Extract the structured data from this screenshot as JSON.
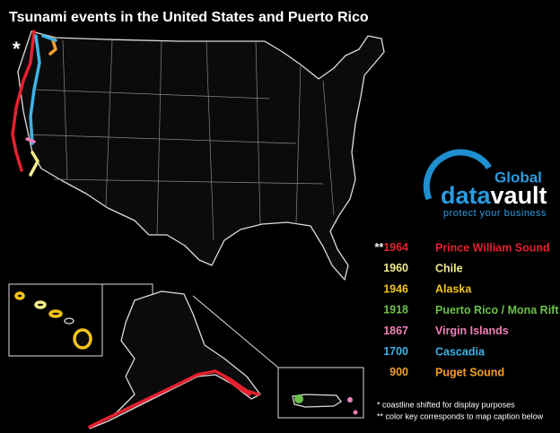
{
  "title": "Tsunami events in the United States and Puerto Rico",
  "marker": "*",
  "logo": {
    "brand": "Global",
    "name_a": "data",
    "name_b": "vault",
    "tagline": "protect your business"
  },
  "legend": [
    {
      "prefix": "**",
      "year": "1964",
      "place": "Prince William Sound",
      "color": "#e5202e"
    },
    {
      "year": "1960",
      "place": "Chile",
      "color": "#f2ec8c"
    },
    {
      "year": "1946",
      "place": "Alaska",
      "color": "#f2c31b"
    },
    {
      "year": "1918",
      "place": "Puerto Rico / Mona Rift",
      "color": "#6cc04a"
    },
    {
      "year": "1867",
      "place": "Virgin Islands",
      "color": "#f07fb7"
    },
    {
      "year": "1700",
      "place": "Cascadia",
      "color": "#3fb3e6"
    },
    {
      "year": "900",
      "place": "Puget Sound",
      "color": "#f4a02a"
    }
  ],
  "notes": [
    "* coastline shifted for display purposes",
    "** color key corresponds to map caption below"
  ]
}
